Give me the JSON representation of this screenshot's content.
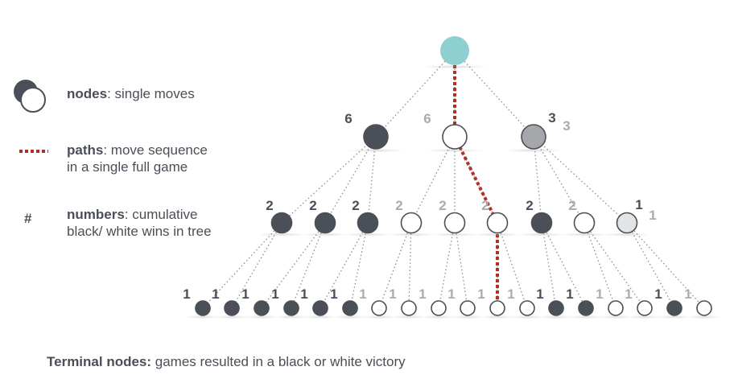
{
  "legend": {
    "nodes": {
      "term": "nodes",
      "desc": ": single moves"
    },
    "paths": {
      "term": "paths",
      "desc": ": move sequence in a single full game"
    },
    "numbers": {
      "symbol": "#",
      "term": "numbers",
      "desc": ": cumulative black/ white wins in tree"
    }
  },
  "footer": {
    "term": "Terminal nodes:",
    "desc": " games resulted in a black or white victory"
  },
  "colors": {
    "root": "#8ecfcf",
    "black": "#4b4f57",
    "white": "#ffffff",
    "grey": "#a5a7aa",
    "lightgrey": "#e3e4e6",
    "path": "#b03024",
    "edge": "#8a8d92",
    "label_black": "#4a4f57",
    "label_white": "#a9abae"
  },
  "tree": {
    "root": {
      "color": "root"
    },
    "level1": [
      {
        "color": "black",
        "labels": [
          {
            "text": "6",
            "tone": "black"
          }
        ]
      },
      {
        "color": "white",
        "labels": [
          {
            "text": "6",
            "tone": "white"
          }
        ]
      },
      {
        "color": "grey",
        "labels": [
          {
            "text": "3",
            "tone": "black"
          },
          {
            "text": "3",
            "tone": "white"
          }
        ]
      }
    ],
    "level2": [
      {
        "parent": 0,
        "color": "black",
        "labels": [
          {
            "text": "2",
            "tone": "black"
          }
        ]
      },
      {
        "parent": 0,
        "color": "black",
        "labels": [
          {
            "text": "2",
            "tone": "black"
          }
        ]
      },
      {
        "parent": 0,
        "color": "black",
        "labels": [
          {
            "text": "2",
            "tone": "black"
          }
        ]
      },
      {
        "parent": 1,
        "color": "white",
        "labels": [
          {
            "text": "2",
            "tone": "white"
          }
        ]
      },
      {
        "parent": 1,
        "color": "white",
        "labels": [
          {
            "text": "2",
            "tone": "white"
          }
        ]
      },
      {
        "parent": 1,
        "color": "white",
        "labels": [
          {
            "text": "2",
            "tone": "white"
          }
        ]
      },
      {
        "parent": 2,
        "color": "black",
        "labels": [
          {
            "text": "2",
            "tone": "black"
          }
        ]
      },
      {
        "parent": 2,
        "color": "white",
        "labels": [
          {
            "text": "2",
            "tone": "white"
          }
        ]
      },
      {
        "parent": 2,
        "color": "lightgrey",
        "labels": [
          {
            "text": "1",
            "tone": "black"
          },
          {
            "text": "1",
            "tone": "white"
          }
        ]
      }
    ],
    "terminals": [
      {
        "parent": 0,
        "color": "black",
        "label": "1",
        "tone": "black"
      },
      {
        "parent": 0,
        "color": "black",
        "label": "1",
        "tone": "black"
      },
      {
        "parent": 1,
        "color": "black",
        "label": "1",
        "tone": "black"
      },
      {
        "parent": 1,
        "color": "black",
        "label": "1",
        "tone": "black"
      },
      {
        "parent": 2,
        "color": "black",
        "label": "1",
        "tone": "black"
      },
      {
        "parent": 2,
        "color": "black",
        "label": "1",
        "tone": "black"
      },
      {
        "parent": 3,
        "color": "white",
        "label": "1",
        "tone": "white"
      },
      {
        "parent": 3,
        "color": "white",
        "label": "1",
        "tone": "white"
      },
      {
        "parent": 4,
        "color": "white",
        "label": "1",
        "tone": "white"
      },
      {
        "parent": 4,
        "color": "white",
        "label": "1",
        "tone": "white"
      },
      {
        "parent": 5,
        "color": "white",
        "label": "1",
        "tone": "white"
      },
      {
        "parent": 5,
        "color": "white",
        "label": "1",
        "tone": "white"
      },
      {
        "parent": 6,
        "color": "black",
        "label": "1",
        "tone": "black"
      },
      {
        "parent": 6,
        "color": "black",
        "label": "1",
        "tone": "black"
      },
      {
        "parent": 7,
        "color": "white",
        "label": "1",
        "tone": "white"
      },
      {
        "parent": 7,
        "color": "white",
        "label": "1",
        "tone": "white"
      },
      {
        "parent": 8,
        "color": "black",
        "label": "1",
        "tone": "black"
      },
      {
        "parent": 8,
        "color": "white",
        "label": "1",
        "tone": "white"
      }
    ],
    "highlight_path": [
      "root",
      "level1:1",
      "level2:5",
      "terminal:10"
    ]
  }
}
